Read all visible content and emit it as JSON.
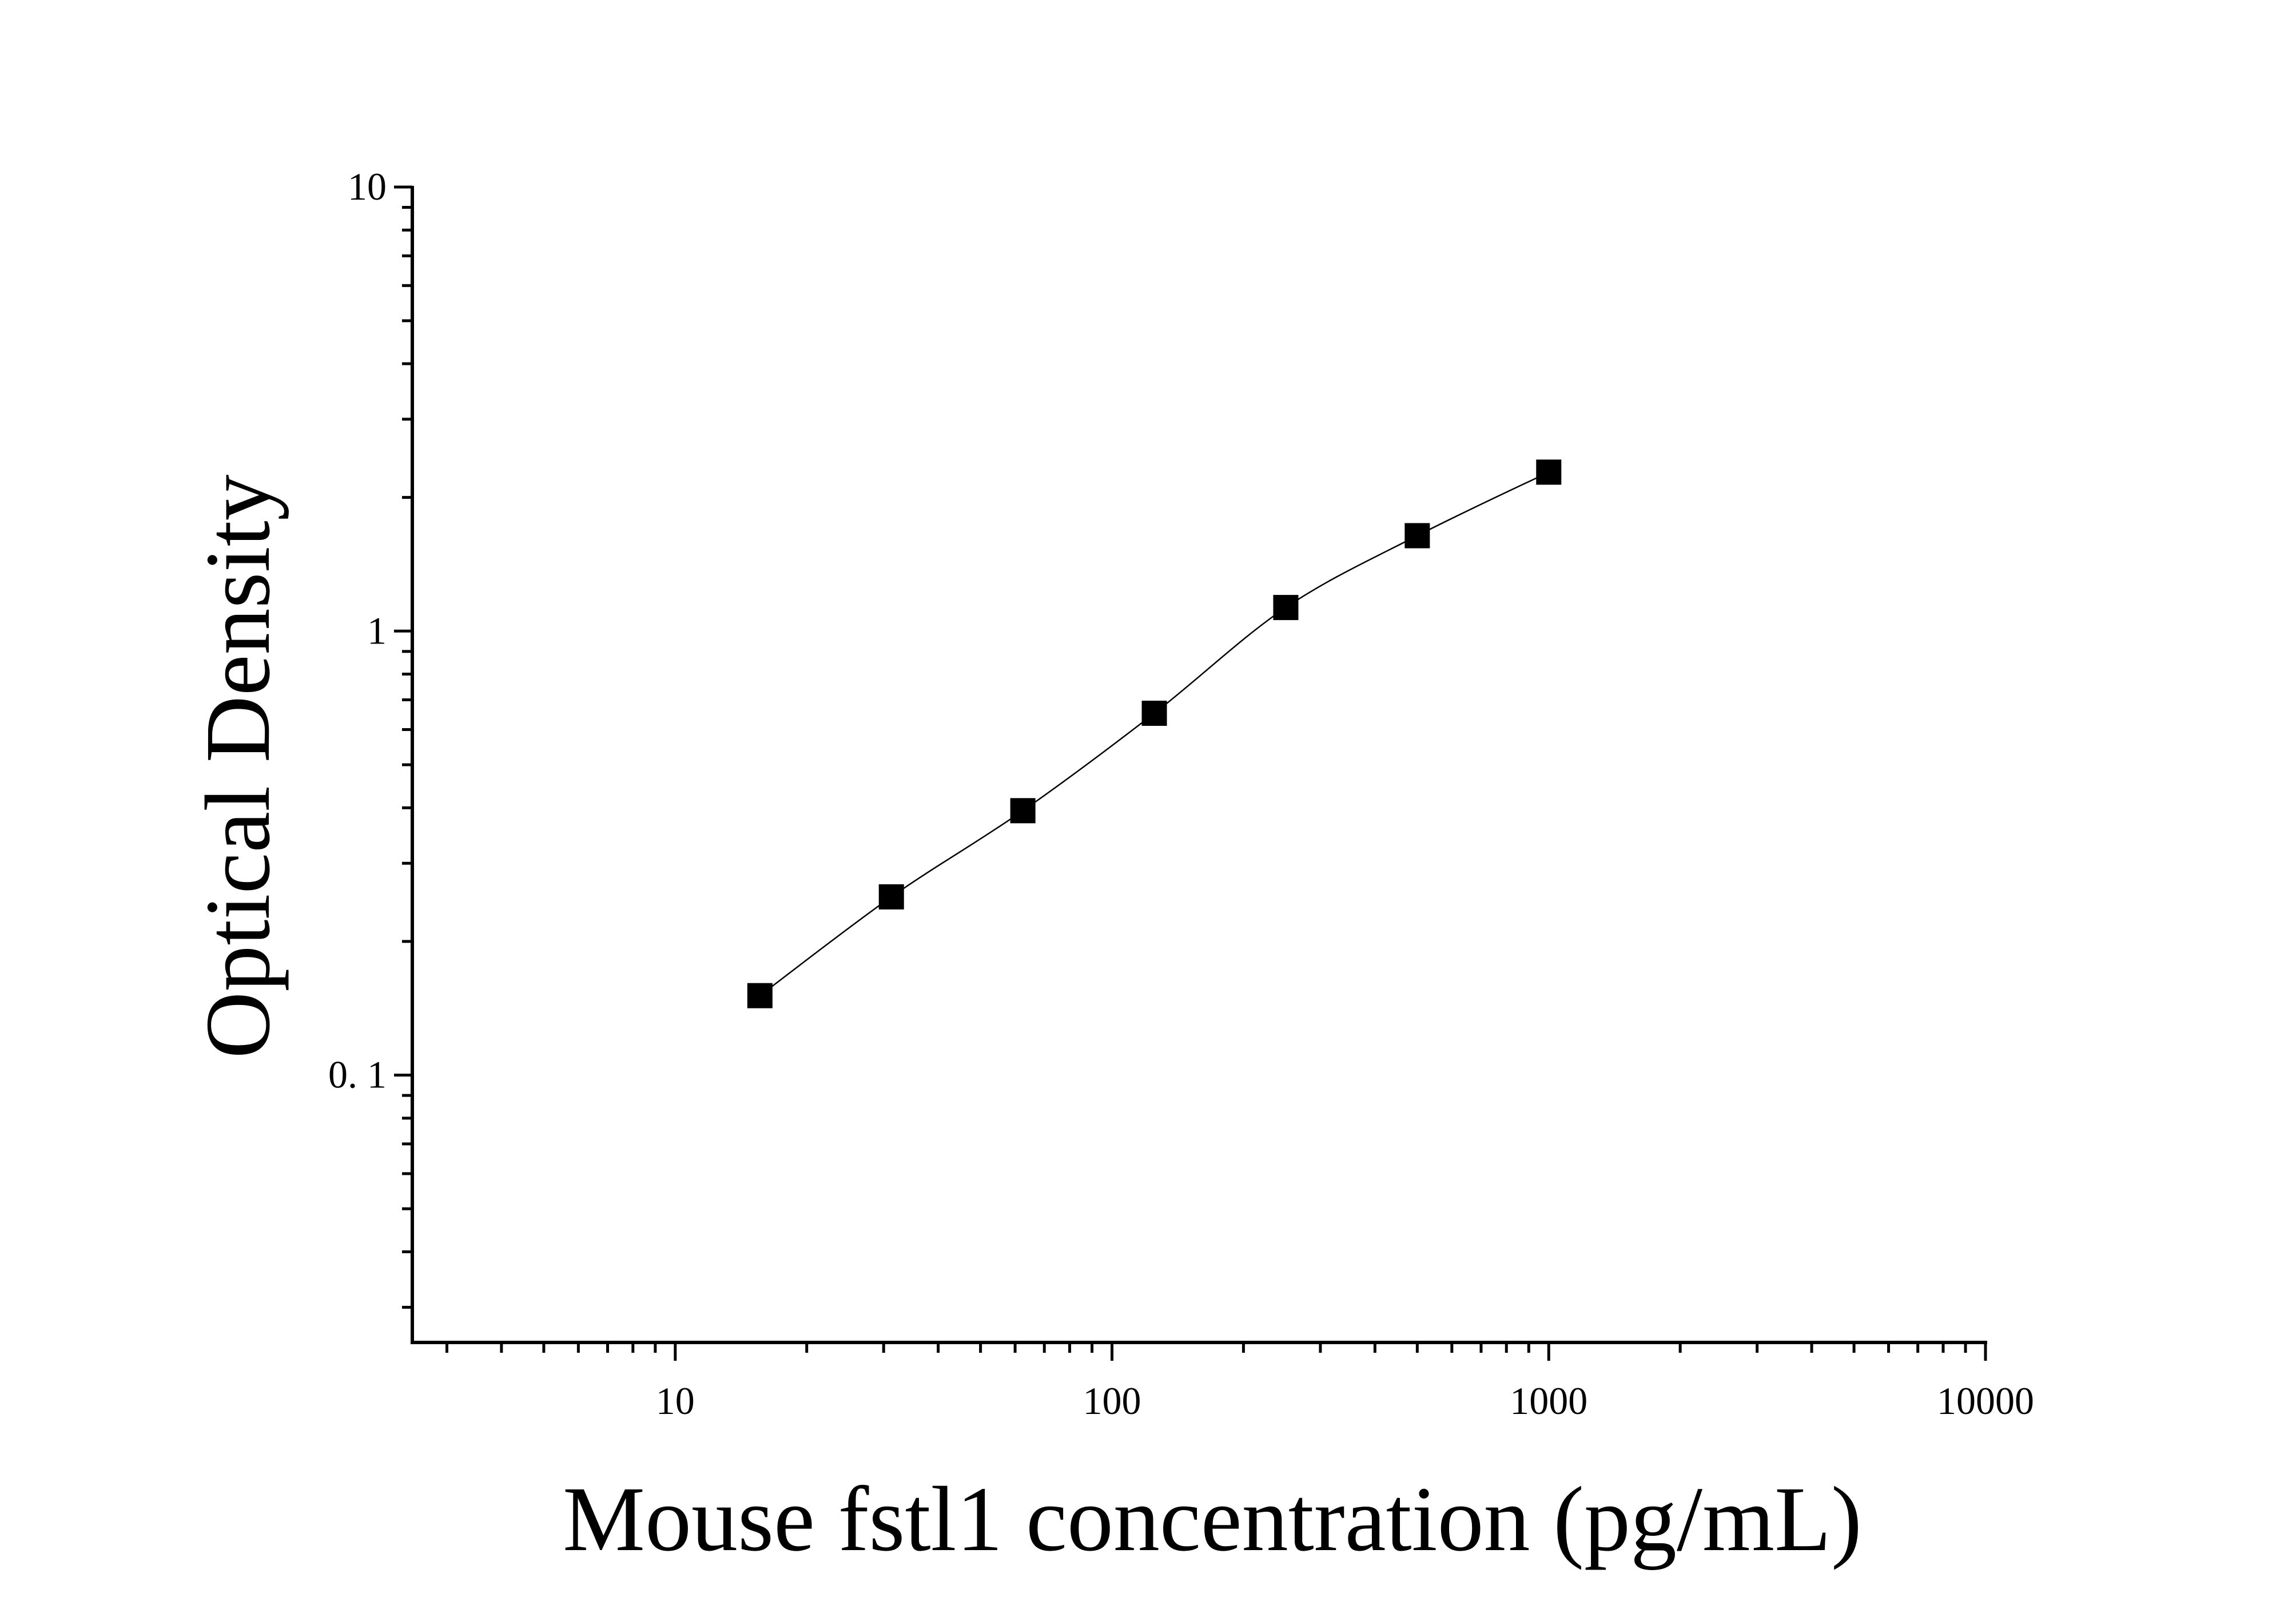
{
  "chart_data": {
    "type": "scatter",
    "title": "",
    "xlabel": "Mouse fstl1 concentration (pg/mL)",
    "ylabel": "Optical Density",
    "x_scale": "log",
    "y_scale": "log",
    "xlim": [
      2.5,
      10000
    ],
    "ylim": [
      0.025,
      10
    ],
    "x_ticks": [
      10,
      100,
      1000,
      10000
    ],
    "x_tick_labels": [
      "10",
      "100",
      "1000",
      "10000"
    ],
    "y_ticks": [
      0.1,
      1,
      10
    ],
    "y_tick_labels": [
      "0. 1",
      "1",
      "10"
    ],
    "grid": false,
    "marker": "square",
    "marker_color": "#000000",
    "curve": "fitted smooth line",
    "series": [
      {
        "x": [
          15.625,
          31.25,
          62.5,
          125,
          250,
          500,
          1000
        ],
        "y": [
          0.151,
          0.252,
          0.394,
          0.653,
          1.13,
          1.64,
          2.28
        ]
      }
    ]
  }
}
